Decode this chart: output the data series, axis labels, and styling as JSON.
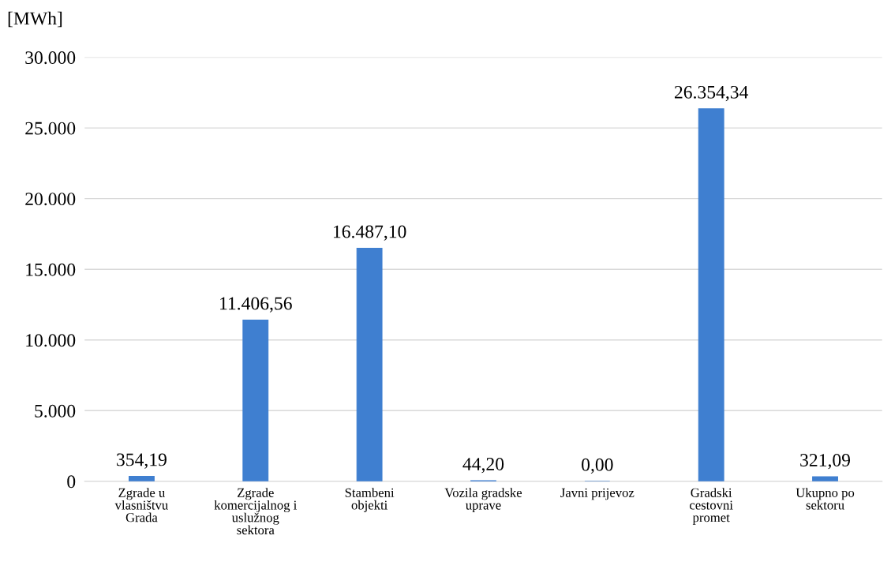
{
  "chart_data": {
    "type": "bar",
    "ylabel": "[MWh]",
    "categories": [
      "Zgrade u\nvlasništvu\nGrada",
      "Zgrade\nkomercijalnog i\nuslužnog\nsektora",
      "Stambeni\nobjekti",
      "Vozila gradske\nuprave",
      "Javni prijevoz",
      "Gradski\ncestovni\npromet",
      "Ukupno po\nsektoru"
    ],
    "values": [
      354.19,
      11406.56,
      16487.1,
      44.2,
      0.0,
      26354.34,
      321.09
    ],
    "value_labels": [
      "354,19",
      "11.406,56",
      "16.487,10",
      "44,20",
      "0,00",
      "26.354,34",
      "321,09"
    ],
    "color": "#3f7fd0",
    "ylim": [
      0,
      30000
    ],
    "yticks": [
      {
        "value": 0,
        "label": "0"
      },
      {
        "value": 5000,
        "label": "5.000"
      },
      {
        "value": 10000,
        "label": "10.000"
      },
      {
        "value": 15000,
        "label": "15.000"
      },
      {
        "value": 20000,
        "label": "20.000"
      },
      {
        "value": 25000,
        "label": "25.000"
      },
      {
        "value": 30000,
        "label": "30.000"
      }
    ],
    "grid": "y"
  }
}
